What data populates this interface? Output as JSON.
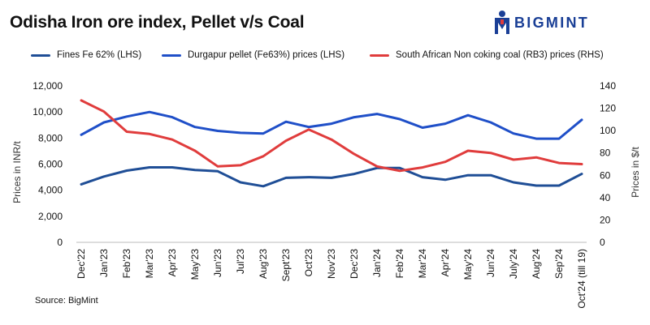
{
  "header": {
    "title": "Odisha Iron ore index, Pellet v/s Coal",
    "logo_text": "BIGMINT",
    "logo_colors": {
      "primary": "#1a3f96",
      "accent": "#e23b3b"
    }
  },
  "footer": {
    "source": "Source: BigMint"
  },
  "chart_data": {
    "type": "line",
    "title": "Odisha Iron ore index, Pellet v/s Coal",
    "categories": [
      "Dec'22",
      "Jan'23",
      "Feb'23",
      "Mar'23",
      "Apr'23",
      "May'23",
      "Jun'23",
      "Jul'23",
      "Aug'23",
      "Sept'23",
      "Oct'23",
      "Nov'23",
      "Dec'23",
      "Jan'24",
      "Feb'24",
      "Mar'24",
      "Apr'24",
      "May'24",
      "Jun'24",
      "July'24",
      "Aug'24",
      "Sep'24",
      "Oct'24 (till 19)"
    ],
    "ylabel": "Prices in INR/t",
    "y2label": "Prices in $/t",
    "ylim": [
      0,
      12000
    ],
    "y2lim": [
      0,
      140
    ],
    "yticks": [
      "0",
      "2,000",
      "4,000",
      "6,000",
      "8,000",
      "10,000",
      "12,000"
    ],
    "y2ticks": [
      "0",
      "20",
      "40",
      "60",
      "80",
      "100",
      "120",
      "140"
    ],
    "legend_position": "top",
    "series": [
      {
        "name": "Fines Fe 62% (LHS)",
        "axis": "left",
        "color": "#1f4e96",
        "values": [
          4450,
          5050,
          5500,
          5750,
          5750,
          5550,
          5450,
          4600,
          4300,
          4950,
          5000,
          4950,
          5250,
          5700,
          5700,
          5000,
          4800,
          5150,
          5150,
          4600,
          4350,
          4350,
          5250
        ]
      },
      {
        "name": "Durgapur pellet (Fe63%) prices (LHS)",
        "axis": "left",
        "color": "#1f4fc8",
        "values": [
          8250,
          9200,
          9650,
          10000,
          9600,
          8850,
          8550,
          8400,
          8350,
          9250,
          8850,
          9100,
          9600,
          9850,
          9450,
          8800,
          9100,
          9750,
          9200,
          8350,
          7950,
          7950,
          9400
        ]
      },
      {
        "name": "South African Non coking coal (RB3) prices (RHS)",
        "axis": "right",
        "color": "#e03c3c",
        "values": [
          127,
          117,
          99,
          97,
          92,
          82,
          68,
          69,
          77,
          91,
          101,
          92,
          79,
          68,
          64,
          67,
          72,
          82,
          80,
          74,
          76,
          71,
          70
        ]
      }
    ]
  }
}
